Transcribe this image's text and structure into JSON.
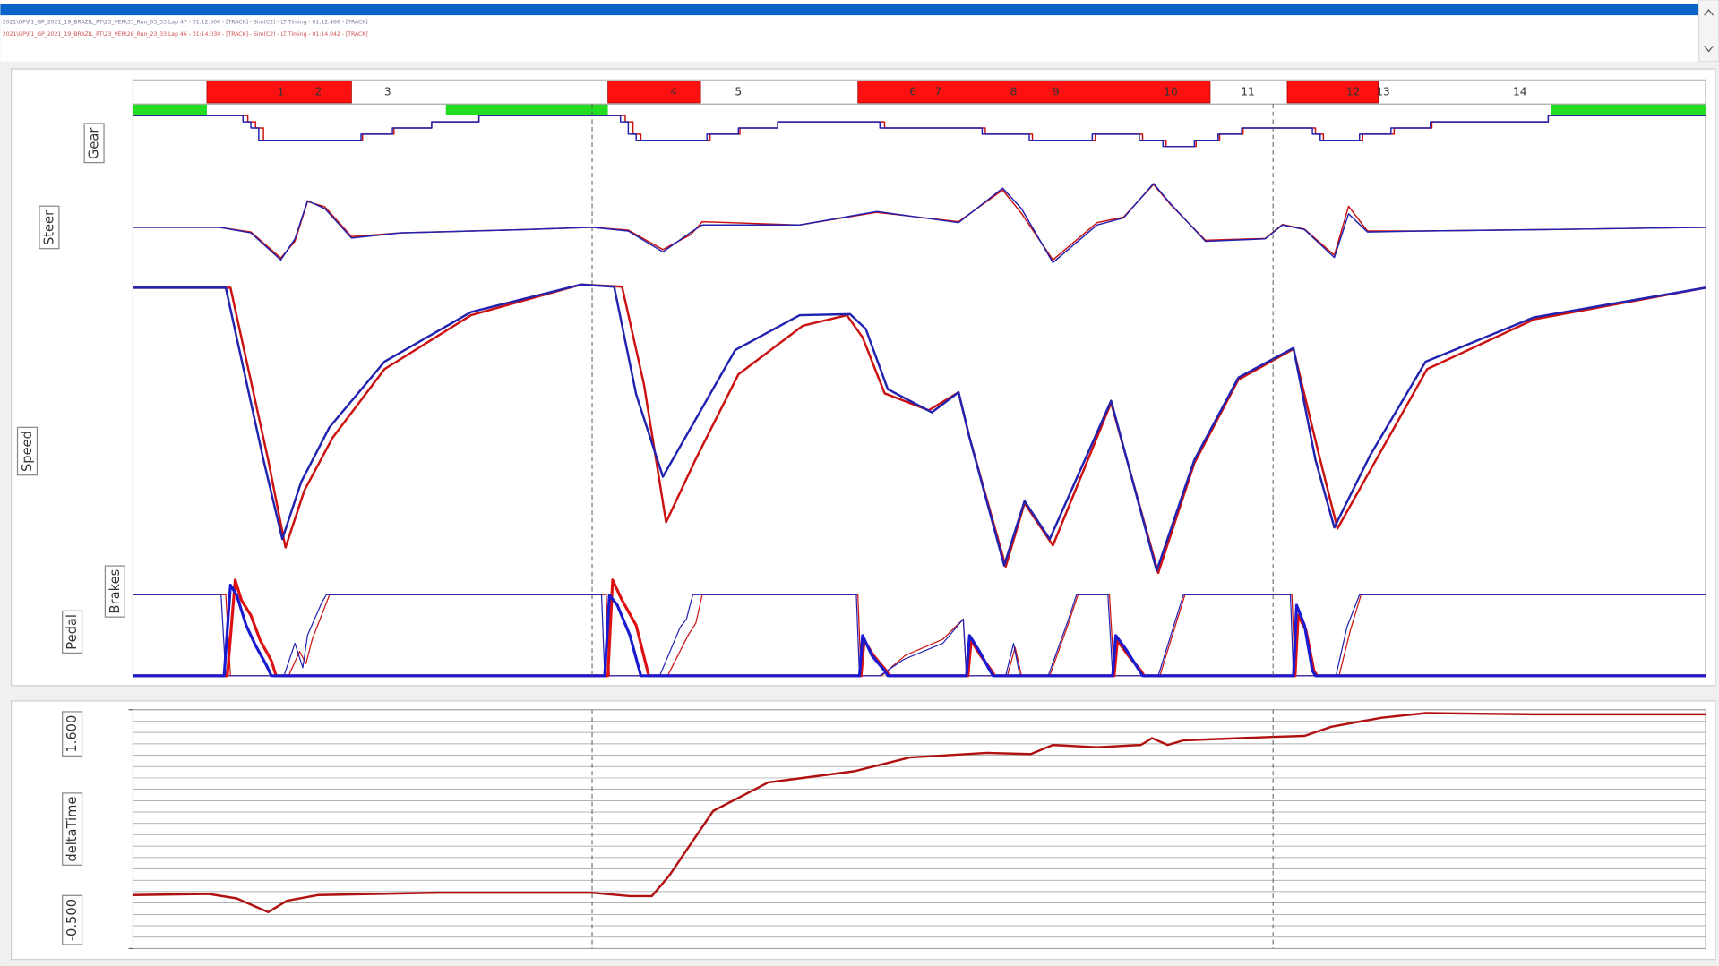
{
  "header": {
    "files": [
      {
        "text": "2021\\GP\\F1_GP_2021_19_BRAZIL_RT\\23_VER\\33_Run_03_33 Lap 47 - 01:12.500 - [TRACK] - Sim(C2) - LT Timing - 01:12.466 - [TRACK]",
        "color": "#7a7a9a"
      },
      {
        "text": "2021\\GP\\F1_GP_2021_19_BRAZIL_RT\\23_VER\\28_Run_23_33 Lap 46 - 01:14.030 - [TRACK] - Sim(C2) - LT Timing - 01:14.042 - [TRACK]",
        "color": "#d05050"
      }
    ]
  },
  "cursor_x": [
    29.2,
    72.5
  ],
  "chart_data": [
    {
      "type": "sectors",
      "xlim": [
        0,
        100
      ],
      "corners": [
        {
          "label": "1",
          "x": 9.4
        },
        {
          "label": "2",
          "x": 11.8
        },
        {
          "label": "3",
          "x": 16.2
        },
        {
          "label": "4",
          "x": 34.4
        },
        {
          "label": "5",
          "x": 38.5
        },
        {
          "label": "6",
          "x": 49.6
        },
        {
          "label": "7",
          "x": 51.2
        },
        {
          "label": "8",
          "x": 56.0
        },
        {
          "label": "9",
          "x": 58.7
        },
        {
          "label": "10",
          "x": 66.0
        },
        {
          "label": "11",
          "x": 70.9
        },
        {
          "label": "12",
          "x": 77.6
        },
        {
          "label": "13",
          "x": 79.5
        },
        {
          "label": "14",
          "x": 88.2
        }
      ],
      "zones": [
        {
          "color": "#ff1010",
          "start": 4.7,
          "end": 13.9
        },
        {
          "color": "#ff1010",
          "start": 30.2,
          "end": 36.1
        },
        {
          "color": "#ff1010",
          "start": 46.1,
          "end": 68.5
        },
        {
          "color": "#ff1010",
          "start": 73.4,
          "end": 79.2
        }
      ],
      "lower_zones": [
        {
          "color": "#22dd22",
          "start": 0,
          "end": 4.7
        },
        {
          "color": "#22dd22",
          "start": 19.9,
          "end": 30.2
        },
        {
          "color": "#22dd22",
          "start": 90.2,
          "end": 100
        }
      ]
    },
    {
      "type": "line",
      "step": true,
      "ylabel": "Gear",
      "xlim": [
        0,
        100
      ],
      "ylim": [
        1,
        9
      ],
      "series": [
        {
          "color": "#cc1111",
          "x": [
            0,
            6.8,
            7.3,
            7.8,
            8.3,
            13.3,
            14.6,
            16.6,
            19.0,
            22.0,
            30.3,
            31.3,
            31.8,
            32.3,
            35.3,
            36.7,
            38.6,
            41.0,
            46.8,
            47.8,
            53.7,
            54.2,
            56.7,
            57.2,
            60.7,
            61.2,
            62.7,
            64.2,
            65.7,
            66.7,
            67.6,
            69.1,
            70.6,
            74.7,
            75.2,
            75.7,
            76.7,
            78.2,
            80.2,
            82.6,
            90.0,
            100
          ],
          "values": [
            8,
            8,
            7,
            6,
            4,
            4,
            5,
            6,
            7,
            8,
            8,
            7,
            5,
            4,
            4,
            5,
            6,
            7,
            7,
            6,
            6,
            5,
            5,
            4,
            4,
            5,
            5,
            4,
            3,
            3,
            4,
            5,
            6,
            6,
            5,
            4,
            4,
            5,
            6,
            7,
            8,
            8
          ]
        },
        {
          "color": "#2222b0",
          "x": [
            0,
            6.5,
            7.0,
            7.5,
            8.0,
            13.0,
            14.5,
            16.5,
            19.0,
            22.0,
            30.0,
            31.0,
            31.5,
            32.0,
            35.0,
            36.5,
            38.5,
            41.0,
            46.5,
            47.5,
            53.5,
            54.0,
            56.5,
            57.0,
            60.5,
            61.0,
            62.5,
            64.0,
            65.5,
            66.5,
            67.5,
            69.0,
            70.5,
            74.5,
            75.0,
            75.5,
            76.5,
            78.0,
            80.0,
            82.5,
            90.0,
            100
          ],
          "values": [
            8,
            8,
            7,
            6,
            4,
            4,
            5,
            6,
            7,
            8,
            8,
            7,
            5,
            4,
            4,
            5,
            6,
            7,
            7,
            6,
            6,
            5,
            5,
            4,
            4,
            5,
            5,
            4,
            3,
            3,
            4,
            5,
            6,
            6,
            5,
            4,
            4,
            5,
            6,
            7,
            8,
            8
          ]
        }
      ]
    },
    {
      "type": "line",
      "ylabel": "Steer",
      "xlim": [
        0,
        100
      ],
      "ylim": [
        -100,
        100
      ],
      "series": [
        {
          "color": "#cc1111",
          "x": [
            0,
            5.5,
            7.5,
            9.4,
            10.3,
            11.1,
            12.2,
            13.9,
            17,
            25,
            29.2,
            31.5,
            33.7,
            35.5,
            36.2,
            42.4,
            47.3,
            52.5,
            55.3,
            56.5,
            58.5,
            61.3,
            63,
            64.9,
            66,
            68.2,
            72,
            73.1,
            74.5,
            76.4,
            77.3,
            78.5,
            82,
            90,
            100
          ],
          "values": [
            0,
            0,
            -10,
            -66,
            -30,
            55,
            44,
            -20,
            -12,
            -5,
            0,
            -6,
            -48,
            -15,
            12,
            5,
            32,
            12,
            80,
            30,
            -70,
            10,
            22,
            92,
            48,
            -28,
            -24,
            6,
            -4,
            -60,
            45,
            -8,
            -8,
            -5,
            0
          ]
        },
        {
          "color": "#2222b0",
          "x": [
            0,
            5.5,
            7.5,
            9.4,
            10.3,
            11.1,
            12.2,
            13.9,
            17,
            25,
            29.2,
            31.5,
            33.7,
            35.5,
            36.2,
            42.4,
            47.3,
            52.5,
            55.3,
            56.5,
            58.5,
            61.3,
            63,
            64.9,
            66,
            68.2,
            72,
            73.1,
            74.5,
            76.4,
            77.3,
            78.5,
            82,
            90,
            100
          ],
          "values": [
            0,
            0,
            -12,
            -70,
            -25,
            57,
            40,
            -23,
            -12,
            -5,
            0,
            -8,
            -53,
            -10,
            5,
            5,
            34,
            10,
            84,
            40,
            -76,
            5,
            20,
            94,
            50,
            -30,
            -25,
            5,
            -5,
            -65,
            29,
            -10,
            -8,
            -5,
            0
          ]
        }
      ]
    },
    {
      "type": "line",
      "ylabel": "Speed",
      "xlim": [
        0,
        100
      ],
      "ylim": [
        60,
        340
      ],
      "series": [
        {
          "color": "#cc1111",
          "x": [
            0,
            6.2,
            8.6,
            9.7,
            10.9,
            12.7,
            16.0,
            21.5,
            28.5,
            31.1,
            32.5,
            33.9,
            35.8,
            38.5,
            42.6,
            45.4,
            46.4,
            47.8,
            50.6,
            52.5,
            53.2,
            55.5,
            56.7,
            58.5,
            62.2,
            65.2,
            67.5,
            70.3,
            73.8,
            75.4,
            76.6,
            78.9,
            82.3,
            89.1,
            100
          ],
          "values": [
            332,
            332,
            169,
            86,
            140,
            190,
            255,
            306,
            335,
            333,
            240,
            110,
            170,
            250,
            296,
            306,
            285,
            232,
            216,
            233,
            190,
            68,
            128,
            88,
            223,
            62,
            166,
            245,
            274,
            175,
            104,
            165,
            255,
            302,
            332
          ]
        },
        {
          "color": "#2222b0",
          "x": [
            0,
            5.9,
            8.3,
            9.5,
            10.7,
            12.5,
            16.0,
            21.5,
            28.5,
            30.6,
            32.0,
            33.7,
            35.5,
            38.3,
            42.4,
            45.6,
            46.6,
            48.0,
            50.8,
            52.5,
            53.2,
            55.4,
            56.7,
            58.3,
            62.2,
            65.1,
            67.5,
            70.3,
            73.8,
            75.2,
            76.4,
            78.7,
            82.2,
            89.1,
            100
          ],
          "values": [
            332,
            332,
            169,
            94,
            148,
            200,
            262,
            309,
            335,
            333,
            231,
            153,
            200,
            273,
            306,
            307,
            293,
            236,
            214,
            233,
            190,
            69,
            130,
            94,
            225,
            64,
            169,
            247,
            275,
            169,
            105,
            174,
            262,
            304,
            332
          ]
        }
      ]
    },
    {
      "type": "line",
      "ylabel": "Pedal",
      "xlim": [
        0,
        100
      ],
      "ylim": [
        0,
        100
      ],
      "series": [
        {
          "color": "#cc1111",
          "x": [
            0,
            5.9,
            6.2,
            9.9,
            10.6,
            11.0,
            11.4,
            12.2,
            12.5,
            30.1,
            30.3,
            34.0,
            35.3,
            35.8,
            36.2,
            46.1,
            46.3,
            47.6,
            49.1,
            51.5,
            52.8,
            53.0,
            55.6,
            56.1,
            56.5,
            58.3,
            59.5,
            60.1,
            62.1,
            62.4,
            65.3,
            66.9,
            73.7,
            73.9,
            76.7,
            77.4,
            78.1,
            100
          ],
          "values": [
            100,
            100,
            0,
            0,
            30,
            15,
            45,
            85,
            100,
            100,
            0,
            0,
            50,
            65,
            100,
            100,
            0,
            0,
            25,
            45,
            70,
            0,
            0,
            35,
            0,
            0,
            65,
            100,
            100,
            0,
            0,
            100,
            100,
            0,
            0,
            55,
            100,
            100
          ]
        },
        {
          "color": "#2222b0",
          "x": [
            0,
            5.6,
            5.9,
            9.6,
            10.3,
            10.8,
            11.1,
            12.0,
            12.3,
            29.8,
            30.0,
            33.5,
            34.8,
            35.2,
            35.6,
            46.0,
            46.2,
            47.5,
            49,
            51.5,
            52.8,
            53.0,
            55.5,
            56.0,
            56.4,
            58.2,
            59.5,
            60.0,
            62.0,
            62.3,
            65.2,
            66.8,
            73.6,
            73.8,
            76.5,
            77.2,
            78.0,
            100
          ],
          "values": [
            100,
            100,
            0,
            0,
            40,
            10,
            50,
            90,
            100,
            100,
            0,
            0,
            60,
            70,
            100,
            100,
            0,
            0,
            20,
            40,
            70,
            0,
            0,
            40,
            0,
            0,
            70,
            100,
            100,
            0,
            0,
            100,
            100,
            0,
            0,
            60,
            100,
            100
          ]
        }
      ]
    },
    {
      "type": "line",
      "ylabel": "Brakes",
      "xlim": [
        0,
        100
      ],
      "ylim": [
        0,
        100
      ],
      "series": [
        {
          "color": "#dd1111",
          "x": [
            0,
            6.0,
            6.5,
            6.9,
            7.5,
            8.1,
            8.8,
            9.1,
            30.2,
            30.5,
            31.1,
            32.0,
            32.8,
            46.3,
            46.5,
            47.1,
            47.9,
            48.1,
            53.1,
            53.3,
            53.9,
            54.6,
            54.8,
            62.4,
            62.6,
            63.3,
            64.1,
            64.3,
            73.9,
            74.1,
            74.6,
            75.1,
            75.3,
            100
          ],
          "values": [
            0,
            0,
            95,
            75,
            60,
            35,
            15,
            0,
            0,
            95,
            75,
            50,
            0,
            0,
            35,
            20,
            5,
            0,
            0,
            35,
            20,
            5,
            0,
            0,
            35,
            20,
            5,
            0,
            0,
            60,
            45,
            5,
            0,
            0
          ]
        },
        {
          "color": "#1a1ad0",
          "x": [
            0,
            5.8,
            6.2,
            6.6,
            7.2,
            7.8,
            8.5,
            8.8,
            30.0,
            30.3,
            30.8,
            31.6,
            32.3,
            46.2,
            46.4,
            47.0,
            47.8,
            48.0,
            53.0,
            53.2,
            53.8,
            54.5,
            54.7,
            62.3,
            62.5,
            63.2,
            64.0,
            64.2,
            73.8,
            74.0,
            74.5,
            75.0,
            75.2,
            100
          ],
          "values": [
            0,
            0,
            90,
            80,
            50,
            30,
            10,
            0,
            0,
            80,
            70,
            40,
            0,
            0,
            40,
            20,
            5,
            0,
            0,
            40,
            25,
            5,
            0,
            0,
            40,
            25,
            5,
            0,
            0,
            70,
            50,
            5,
            0,
            0
          ]
        }
      ]
    },
    {
      "type": "line",
      "ylabel": "deltaTime",
      "xlim": [
        0,
        100
      ],
      "ylim": [
        -0.5,
        1.6
      ],
      "yticks": [
        {
          "value": -0.5,
          "label": "-0.500"
        },
        {
          "value": 1.6,
          "label": "1.600"
        }
      ],
      "minor_yticks": [
        -0.5,
        -0.4,
        -0.3,
        -0.2,
        -0.1,
        0,
        0.1,
        0.2,
        0.3,
        0.4,
        0.5,
        0.6,
        0.7,
        0.8,
        0.9,
        1.0,
        1.1,
        1.2,
        1.3,
        1.4,
        1.5,
        1.6
      ],
      "series": [
        {
          "color": "#b01010",
          "x": [
            0,
            4.8,
            6.6,
            8.6,
            9.8,
            11.8,
            19.4,
            29.2,
            31.6,
            33.0,
            34.1,
            36.9,
            40.4,
            45.9,
            49.4,
            54.3,
            57.1,
            58.5,
            61.3,
            64.1,
            64.8,
            65.8,
            66.8,
            72.4,
            74.5,
            76.2,
            79.4,
            82.2,
            89.1,
            100
          ],
          "values": [
            -0.03,
            -0.02,
            -0.06,
            -0.18,
            -0.08,
            -0.03,
            -0.01,
            -0.01,
            -0.04,
            -0.04,
            0.14,
            0.71,
            0.96,
            1.06,
            1.18,
            1.22,
            1.21,
            1.29,
            1.27,
            1.29,
            1.35,
            1.29,
            1.33,
            1.36,
            1.37,
            1.45,
            1.53,
            1.57,
            1.56,
            1.56
          ]
        }
      ]
    }
  ]
}
